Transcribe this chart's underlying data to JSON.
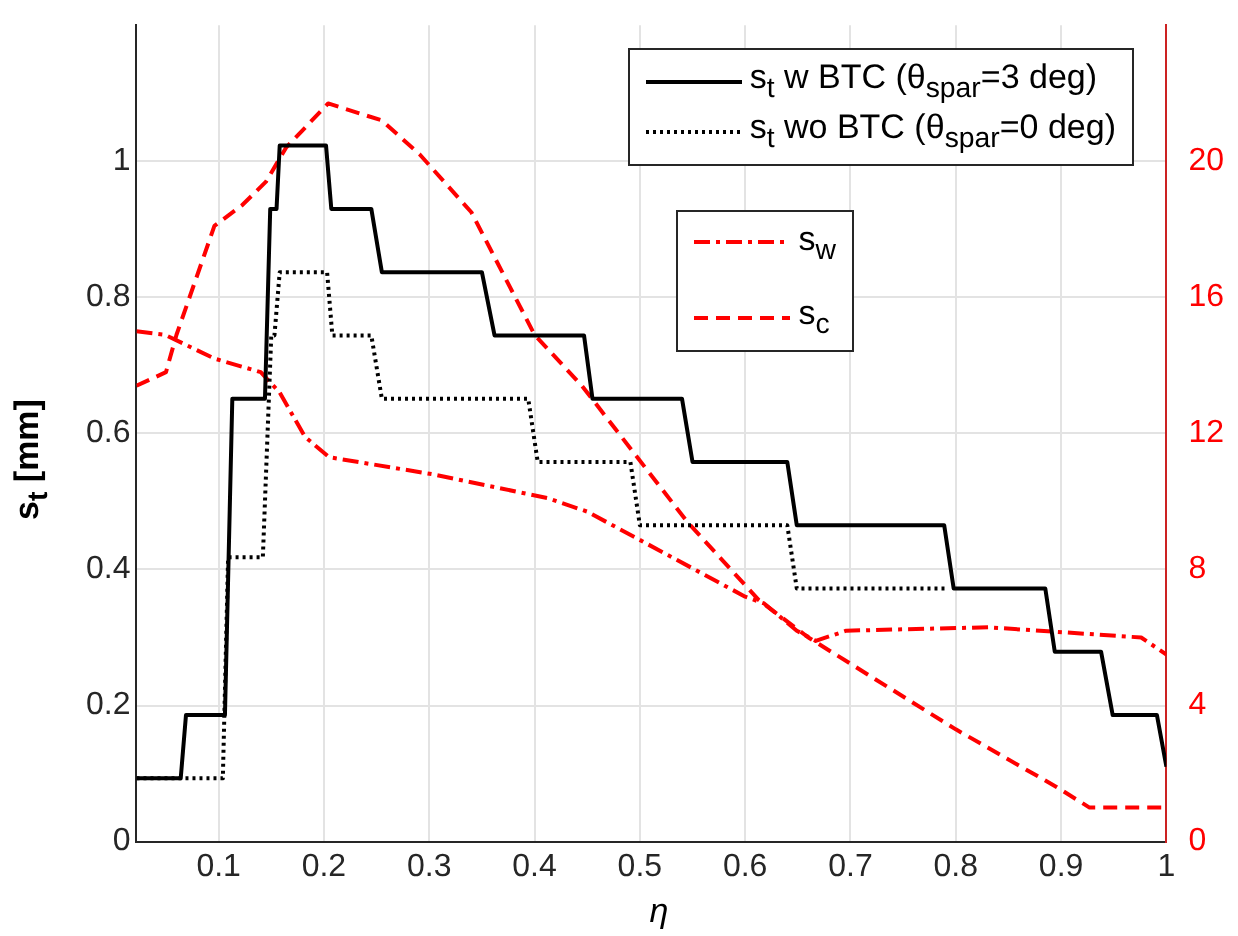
{
  "chart_data": {
    "type": "line",
    "xlabel": "η",
    "ylabel": "s$_{t}$ [mm]",
    "xlim": [
      0.022,
      1
    ],
    "xticks": [
      0.1,
      0.2,
      0.3,
      0.4,
      0.5,
      0.6,
      0.7,
      0.8,
      0.9,
      1
    ],
    "ylim": [
      0,
      1.2
    ],
    "yticks": [
      0,
      0.2,
      0.4,
      0.6,
      0.8,
      1
    ],
    "y2lim": [
      0,
      24
    ],
    "y2ticks": [
      0,
      4,
      8,
      12,
      16,
      20
    ],
    "grid": true,
    "legend": "top right",
    "marker": "none",
    "series": [
      {
        "name": "s$_{t}$ w BTC (θ$_{spar}$=3 deg)",
        "color": "#000000",
        "line_style": "solid",
        "x": [
          0.022,
          0.064,
          0.069,
          0.106,
          0.113,
          0.144,
          0.149,
          0.155,
          0.158,
          0.202,
          0.207,
          0.245,
          0.255,
          0.35,
          0.362,
          0.447,
          0.455,
          0.54,
          0.55,
          0.64,
          0.649,
          0.789,
          0.798,
          0.885,
          0.894,
          0.938,
          0.949,
          0.991,
          1
        ],
        "values": [
          0.093,
          0.093,
          0.186,
          0.186,
          0.651,
          0.651,
          0.93,
          0.93,
          1.023,
          1.023,
          0.93,
          0.93,
          0.837,
          0.837,
          0.744,
          0.744,
          0.651,
          0.651,
          0.558,
          0.558,
          0.465,
          0.465,
          0.372,
          0.372,
          0.279,
          0.279,
          0.186,
          0.186,
          0.11
        ]
      },
      {
        "name": "s$_{t}$ wo BTC (θ$_{spar}$=0 deg)",
        "color": "#000000",
        "line_style": "dotted",
        "x": [
          0.022,
          0.104,
          0.109,
          0.142,
          0.15,
          0.153,
          0.158,
          0.203,
          0.208,
          0.245,
          0.255,
          0.394,
          0.403,
          0.491,
          0.5,
          0.64,
          0.649,
          0.79
        ],
        "values": [
          0.093,
          0.093,
          0.418,
          0.418,
          0.744,
          0.744,
          0.837,
          0.837,
          0.744,
          0.744,
          0.651,
          0.651,
          0.558,
          0.558,
          0.465,
          0.465,
          0.372,
          0.372
        ]
      },
      {
        "name": "s$_{w}$",
        "color": "#ff0000",
        "line_style": "dashdot",
        "axis": "y2",
        "x": [
          0.022,
          0.049,
          0.096,
          0.14,
          0.158,
          0.182,
          0.205,
          0.303,
          0.412,
          0.45,
          0.558,
          0.6,
          0.618,
          0.649,
          0.667,
          0.696,
          0.831,
          0.976,
          1
        ],
        "values": [
          15.0,
          14.9,
          14.2,
          13.8,
          13.2,
          11.9,
          11.3,
          10.8,
          10.1,
          9.7,
          7.9,
          7.2,
          7.0,
          6.2,
          5.9,
          6.2,
          6.3,
          6.0,
          5.5
        ]
      },
      {
        "name": "s$_{c}$",
        "color": "#ff0000",
        "line_style": "dashed",
        "axis": "y2",
        "x": [
          0.022,
          0.05,
          0.06,
          0.096,
          0.122,
          0.145,
          0.164,
          0.204,
          0.255,
          0.291,
          0.34,
          0.4,
          0.445,
          0.545,
          0.613,
          0.66,
          0.8,
          0.896,
          0.927,
          1
        ],
        "values": [
          13.4,
          13.8,
          14.9,
          18.1,
          18.7,
          19.4,
          20.4,
          21.7,
          21.2,
          20.2,
          18.5,
          14.9,
          13.4,
          9.4,
          7.1,
          6.0,
          3.3,
          1.6,
          1.0,
          1.0
        ]
      }
    ]
  }
}
